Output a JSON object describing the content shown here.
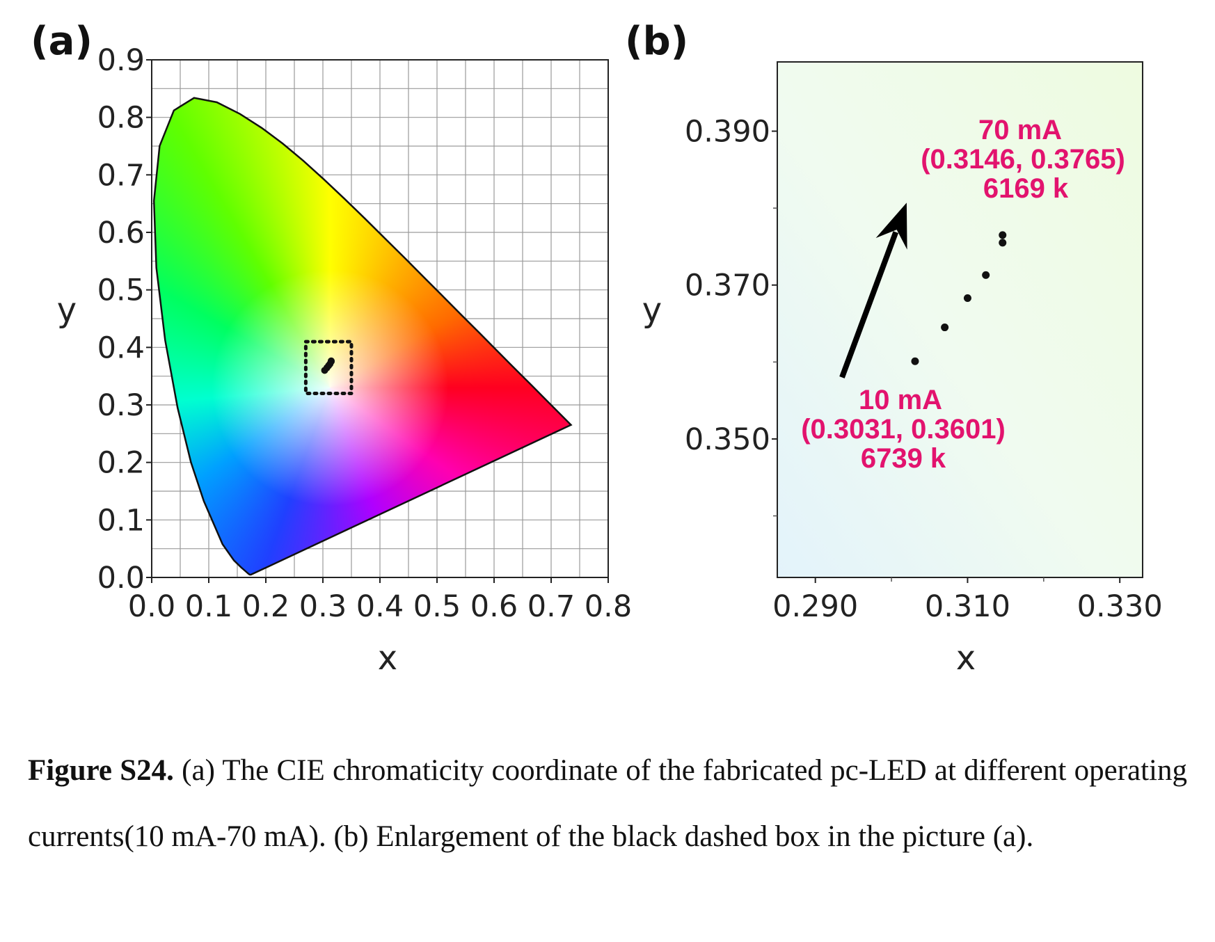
{
  "caption": {
    "label": "Figure S24.",
    "text": " (a) The CIE chromaticity coordinate of the fabricated pc-LED at different operating currents(10 mA-70 mA). (b) Enlargement of the black dashed box in the picture (a)."
  },
  "chart_data": [
    {
      "panel": "(a)",
      "type": "scatter",
      "background": "CIE 1931 chromaticity diagram",
      "xlabel": "x",
      "ylabel": "y",
      "xlim": [
        0,
        0.8
      ],
      "ylim": [
        0,
        0.9
      ],
      "xticks": [
        "0.0",
        "0.1",
        "0.2",
        "0.3",
        "0.4",
        "0.5",
        "0.6",
        "0.7",
        "0.8"
      ],
      "yticks": [
        "0.0",
        "0.1",
        "0.2",
        "0.3",
        "0.4",
        "0.5",
        "0.6",
        "0.7",
        "0.8",
        "0.9"
      ],
      "grid": true,
      "highlight_box": {
        "x": [
          0.27,
          0.35
        ],
        "y": [
          0.32,
          0.41
        ],
        "style": "black dotted"
      },
      "points": [
        {
          "x": 0.3031,
          "y": 0.3601
        },
        {
          "x": 0.307,
          "y": 0.3645
        },
        {
          "x": 0.31,
          "y": 0.3683
        },
        {
          "x": 0.3124,
          "y": 0.3713
        },
        {
          "x": 0.3146,
          "y": 0.3755
        },
        {
          "x": 0.3146,
          "y": 0.3765
        }
      ]
    },
    {
      "panel": "(b)",
      "type": "scatter",
      "xlabel": "x",
      "ylabel": "y",
      "xlim": [
        0.285,
        0.333
      ],
      "ylim": [
        0.332,
        0.399
      ],
      "xticks": [
        "0.290",
        "0.310",
        "0.330"
      ],
      "yticks": [
        "0.350",
        "0.370",
        "0.390"
      ],
      "grid": false,
      "points": [
        {
          "x": 0.3031,
          "y": 0.3601
        },
        {
          "x": 0.307,
          "y": 0.3645
        },
        {
          "x": 0.31,
          "y": 0.3683
        },
        {
          "x": 0.3124,
          "y": 0.3713
        },
        {
          "x": 0.3146,
          "y": 0.3755
        },
        {
          "x": 0.3146,
          "y": 0.3765
        }
      ],
      "annotations": [
        {
          "lines": [
            "70 mA",
            "(0.3146, 0.3765)",
            "6169 k"
          ],
          "color": "#e2136e"
        },
        {
          "lines": [
            "10 mA",
            "(0.3031, 0.3601)",
            "6739 k"
          ],
          "color": "#e2136e"
        }
      ],
      "arrow": {
        "from": [
          0.2935,
          0.358
        ],
        "to": [
          0.302,
          0.3807
        ],
        "color": "#000000"
      }
    }
  ]
}
